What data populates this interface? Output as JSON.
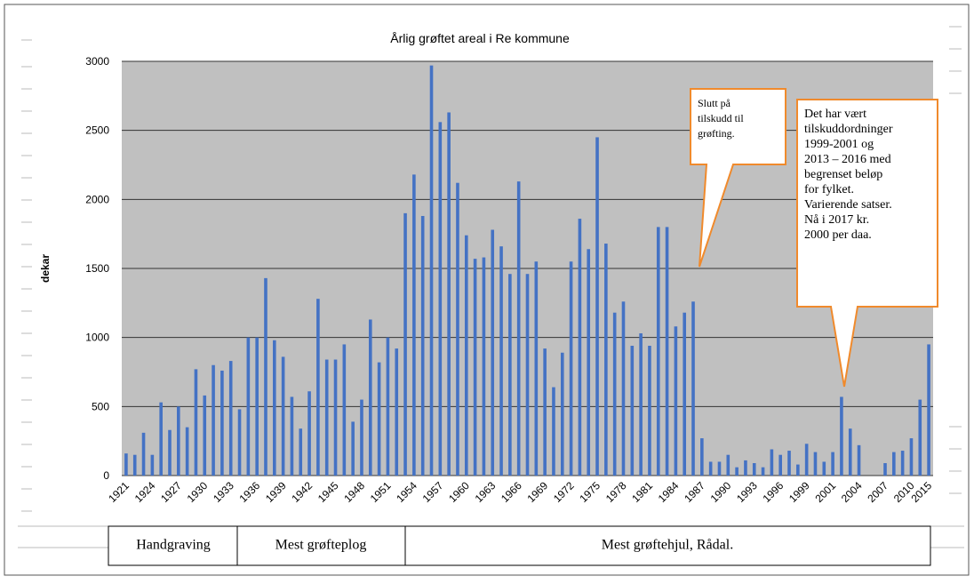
{
  "chart_data": {
    "type": "bar",
    "title": "Årlig grøftet areal i Re kommune",
    "y_label": "dekar",
    "categories": [
      "1921",
      null,
      null,
      "1924",
      null,
      null,
      "1927",
      null,
      null,
      "1930",
      null,
      null,
      "1933",
      null,
      null,
      "1936",
      null,
      null,
      "1939",
      null,
      null,
      "1942",
      null,
      null,
      "1945",
      null,
      null,
      "1948",
      null,
      null,
      "1951",
      null,
      null,
      "1954",
      null,
      null,
      "1957",
      null,
      null,
      "1960",
      null,
      null,
      "1963",
      null,
      null,
      "1966",
      null,
      null,
      "1969",
      null,
      null,
      "1972",
      null,
      null,
      "1975",
      null,
      null,
      "1978",
      null,
      null,
      "1981",
      null,
      null,
      "1984",
      null,
      null,
      "1987",
      null,
      null,
      "1990",
      null,
      null,
      "1993",
      null,
      null,
      "1996",
      null,
      null,
      "1999",
      null,
      null,
      "2001",
      null,
      null,
      "2004",
      null,
      null,
      "2007",
      null,
      null,
      "2010",
      null,
      "2015"
    ],
    "values": [
      160,
      150,
      310,
      150,
      530,
      330,
      500,
      350,
      770,
      580,
      800,
      760,
      830,
      480,
      1000,
      1000,
      1430,
      980,
      860,
      570,
      340,
      610,
      1280,
      840,
      840,
      950,
      390,
      550,
      1130,
      820,
      1000,
      920,
      1900,
      2180,
      1880,
      2970,
      2560,
      2630,
      2120,
      1740,
      1570,
      1580,
      1780,
      1660,
      1460,
      2130,
      1460,
      1550,
      920,
      640,
      890,
      1550,
      1860,
      1640,
      2450,
      1680,
      1180,
      1260,
      940,
      1030,
      940,
      1800,
      1800,
      1080,
      1180,
      1260,
      270,
      100,
      100,
      150,
      60,
      110,
      90,
      60,
      190,
      150,
      180,
      80,
      230,
      170,
      100,
      170,
      570,
      340,
      220,
      0,
      0,
      90,
      170,
      180,
      270,
      550,
      950
    ],
    "color": "#4472c4",
    "ylim": [
      0,
      3000
    ],
    "yticks": [
      0,
      500,
      1000,
      1500,
      2000,
      2500,
      3000
    ],
    "grid": true,
    "annotations": [
      {
        "lines": [
          "Slutt på",
          "tilskudd til",
          "grøfting."
        ]
      },
      {
        "lines": [
          "Det har vært",
          "tilskuddordninger",
          "1999-2001 og",
          "2013 – 2016 med",
          "begrenset beløp",
          "for  fylket.",
          "Varierende satser.",
          "Nå i 2017 kr.",
          "2000 per daa."
        ]
      }
    ],
    "periods": [
      "Handgraving",
      "Mest grøfteplog",
      "Mest grøftehjul, Rådal."
    ]
  }
}
